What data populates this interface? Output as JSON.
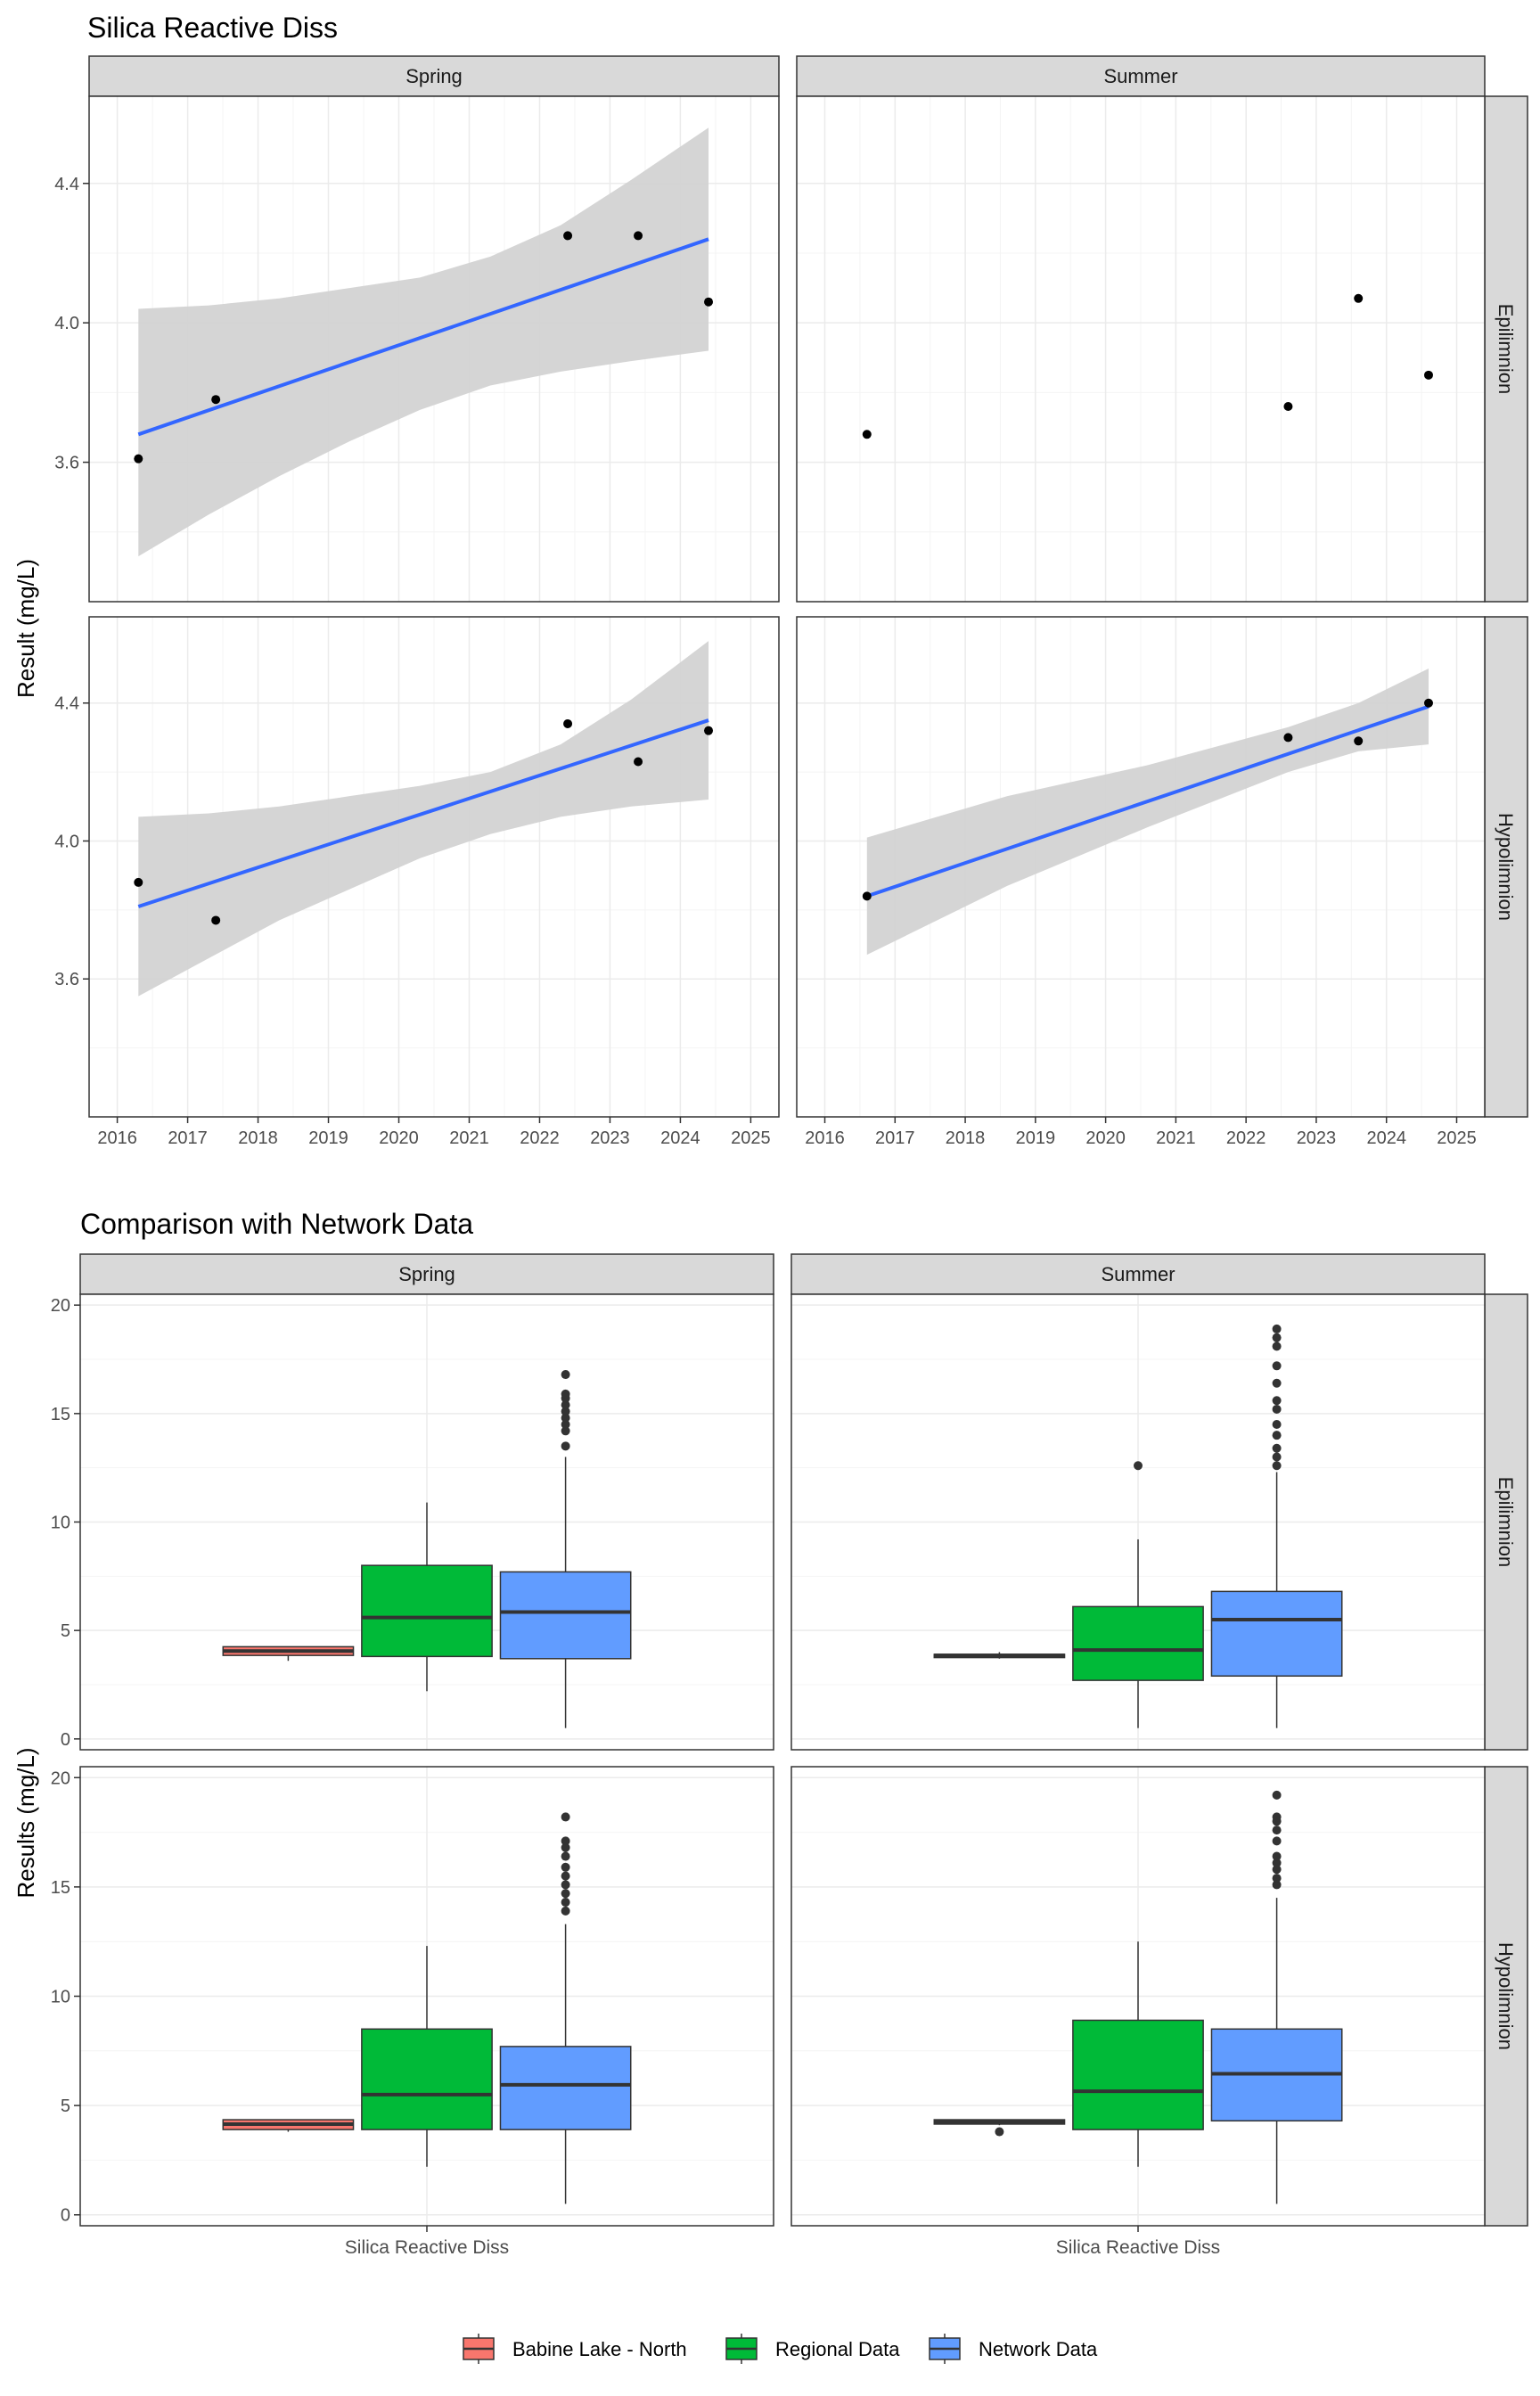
{
  "chart_data": [
    {
      "type": "scatter",
      "title": "Silica Reactive Diss",
      "xlabel": "",
      "ylabel": "Result (mg/L)",
      "x_axis": "date (year)",
      "xlim": [
        2015.6,
        2025.4
      ],
      "ylim": [
        3.2,
        4.65
      ],
      "x_ticks": [
        "2016",
        "2017",
        "2018",
        "2019",
        "2020",
        "2021",
        "2022",
        "2023",
        "2024",
        "2025"
      ],
      "y_ticks": [
        "3.6",
        "4.0",
        "4.4"
      ],
      "col_facets": [
        "Spring",
        "Summer"
      ],
      "row_facets": [
        "Epilimnion",
        "Hypolimnion"
      ],
      "grid": true,
      "trend_color": "#3366FF",
      "ribbon_color": "#D3D3D3",
      "point_color": "#000000",
      "panels": [
        {
          "col": "Spring",
          "row": "Epilimnion",
          "points": [
            [
              2016.3,
              3.61
            ],
            [
              2017.4,
              3.78
            ],
            [
              2022.4,
              4.25
            ],
            [
              2023.4,
              4.25
            ],
            [
              2024.4,
              4.06
            ]
          ],
          "trend": {
            "x": [
              2016.3,
              2024.4
            ],
            "y": [
              3.68,
              4.24
            ]
          },
          "ribbon": [
            [
              2016.3,
              3.33,
              4.04
            ],
            [
              2017.3,
              3.45,
              4.05
            ],
            [
              2018.3,
              3.56,
              4.07
            ],
            [
              2019.3,
              3.66,
              4.1
            ],
            [
              2020.3,
              3.75,
              4.13
            ],
            [
              2021.3,
              3.82,
              4.19
            ],
            [
              2022.3,
              3.86,
              4.28
            ],
            [
              2023.3,
              3.89,
              4.41
            ],
            [
              2024.4,
              3.92,
              4.56
            ]
          ]
        },
        {
          "col": "Summer",
          "row": "Epilimnion",
          "points": [
            [
              2016.6,
              3.68
            ],
            [
              2022.6,
              3.76
            ],
            [
              2023.6,
              4.07
            ],
            [
              2024.6,
              3.85
            ]
          ],
          "trend": null,
          "ribbon": null
        },
        {
          "col": "Spring",
          "row": "Hypolimnion",
          "points": [
            [
              2016.3,
              3.88
            ],
            [
              2017.4,
              3.77
            ],
            [
              2022.4,
              4.34
            ],
            [
              2023.4,
              4.23
            ],
            [
              2024.4,
              4.32
            ]
          ],
          "trend": {
            "x": [
              2016.3,
              2024.4
            ],
            "y": [
              3.81,
              4.35
            ]
          },
          "ribbon": [
            [
              2016.3,
              3.55,
              4.07
            ],
            [
              2017.3,
              3.66,
              4.08
            ],
            [
              2018.3,
              3.77,
              4.1
            ],
            [
              2019.3,
              3.86,
              4.13
            ],
            [
              2020.3,
              3.95,
              4.16
            ],
            [
              2021.3,
              4.02,
              4.2
            ],
            [
              2022.3,
              4.07,
              4.28
            ],
            [
              2023.3,
              4.1,
              4.41
            ],
            [
              2024.4,
              4.12,
              4.58
            ]
          ]
        },
        {
          "col": "Summer",
          "row": "Hypolimnion",
          "points": [
            [
              2016.6,
              3.84
            ],
            [
              2022.6,
              4.3
            ],
            [
              2023.6,
              4.29
            ],
            [
              2024.6,
              4.4
            ]
          ],
          "trend": {
            "x": [
              2016.6,
              2024.6
            ],
            "y": [
              3.84,
              4.39
            ]
          },
          "ribbon": [
            [
              2016.6,
              3.67,
              4.01
            ],
            [
              2018.6,
              3.87,
              4.13
            ],
            [
              2020.6,
              4.04,
              4.22
            ],
            [
              2022.6,
              4.2,
              4.33
            ],
            [
              2023.6,
              4.26,
              4.4
            ],
            [
              2024.6,
              4.28,
              4.5
            ]
          ]
        }
      ]
    },
    {
      "type": "box",
      "title": "Comparison with Network Data",
      "xlabel": "",
      "ylabel": "Results (mg/L)",
      "ylim": [
        -0.5,
        20.5
      ],
      "y_ticks": [
        "0",
        "5",
        "10",
        "15",
        "20"
      ],
      "category": "Silica Reactive Diss",
      "col_facets": [
        "Spring",
        "Summer"
      ],
      "row_facets": [
        "Epilimnion",
        "Hypolimnion"
      ],
      "grid": true,
      "legend": {
        "position": "bottom",
        "items": [
          {
            "label": "Babine Lake - North",
            "color": "#F8766D"
          },
          {
            "label": "Regional Data",
            "color": "#00BA38"
          },
          {
            "label": "Network Data",
            "color": "#619CFF"
          }
        ]
      },
      "panels": [
        {
          "col": "Spring",
          "row": "Epilimnion",
          "boxes": [
            {
              "group": "Babine Lake - North",
              "whisker_low": 3.6,
              "q1": 3.85,
              "median": 4.05,
              "q3": 4.25,
              "whisker_high": 4.25,
              "outliers": []
            },
            {
              "group": "Regional Data",
              "whisker_low": 2.2,
              "q1": 3.8,
              "median": 5.6,
              "q3": 8.0,
              "whisker_high": 10.9,
              "outliers": []
            },
            {
              "group": "Network Data",
              "whisker_low": 0.5,
              "q1": 3.7,
              "median": 5.85,
              "q3": 7.7,
              "whisker_high": 13.0,
              "outliers": [
                13.5,
                14.2,
                14.5,
                14.8,
                15.1,
                15.4,
                15.7,
                15.9,
                16.8
              ]
            }
          ]
        },
        {
          "col": "Summer",
          "row": "Epilimnion",
          "boxes": [
            {
              "group": "Babine Lake - North",
              "whisker_low": 3.7,
              "q1": 3.75,
              "median": 3.85,
              "q3": 3.9,
              "whisker_high": 4.0,
              "outliers": []
            },
            {
              "group": "Regional Data",
              "whisker_low": 0.5,
              "q1": 2.7,
              "median": 4.1,
              "q3": 6.1,
              "whisker_high": 9.2,
              "outliers": [
                12.6
              ]
            },
            {
              "group": "Network Data",
              "whisker_low": 0.5,
              "q1": 2.9,
              "median": 5.5,
              "q3": 6.8,
              "whisker_high": 12.3,
              "outliers": [
                12.6,
                13.0,
                13.4,
                14.0,
                14.5,
                15.2,
                15.6,
                16.4,
                17.2,
                18.1,
                18.5,
                18.9
              ]
            }
          ]
        },
        {
          "col": "Spring",
          "row": "Hypolimnion",
          "boxes": [
            {
              "group": "Babine Lake - North",
              "whisker_low": 3.8,
              "q1": 3.9,
              "median": 4.15,
              "q3": 4.35,
              "whisker_high": 4.35,
              "outliers": []
            },
            {
              "group": "Regional Data",
              "whisker_low": 2.2,
              "q1": 3.9,
              "median": 5.5,
              "q3": 8.5,
              "whisker_high": 12.3,
              "outliers": []
            },
            {
              "group": "Network Data",
              "whisker_low": 0.5,
              "q1": 3.9,
              "median": 5.95,
              "q3": 7.7,
              "whisker_high": 13.3,
              "outliers": [
                13.9,
                14.3,
                14.7,
                15.1,
                15.5,
                15.9,
                16.4,
                16.8,
                17.1,
                18.2
              ]
            }
          ]
        },
        {
          "col": "Summer",
          "row": "Hypolimnion",
          "boxes": [
            {
              "group": "Babine Lake - North",
              "whisker_low": 4.1,
              "q1": 4.15,
              "median": 4.25,
              "q3": 4.35,
              "whisker_high": 4.35,
              "outliers": [
                3.8
              ]
            },
            {
              "group": "Regional Data",
              "whisker_low": 2.2,
              "q1": 3.9,
              "median": 5.65,
              "q3": 8.9,
              "whisker_high": 12.5,
              "outliers": []
            },
            {
              "group": "Network Data",
              "whisker_low": 0.5,
              "q1": 4.3,
              "median": 6.45,
              "q3": 8.5,
              "whisker_high": 14.5,
              "outliers": [
                15.1,
                15.4,
                15.8,
                16.1,
                16.4,
                17.1,
                17.6,
                18.0,
                18.2,
                19.2
              ]
            }
          ]
        }
      ]
    }
  ]
}
